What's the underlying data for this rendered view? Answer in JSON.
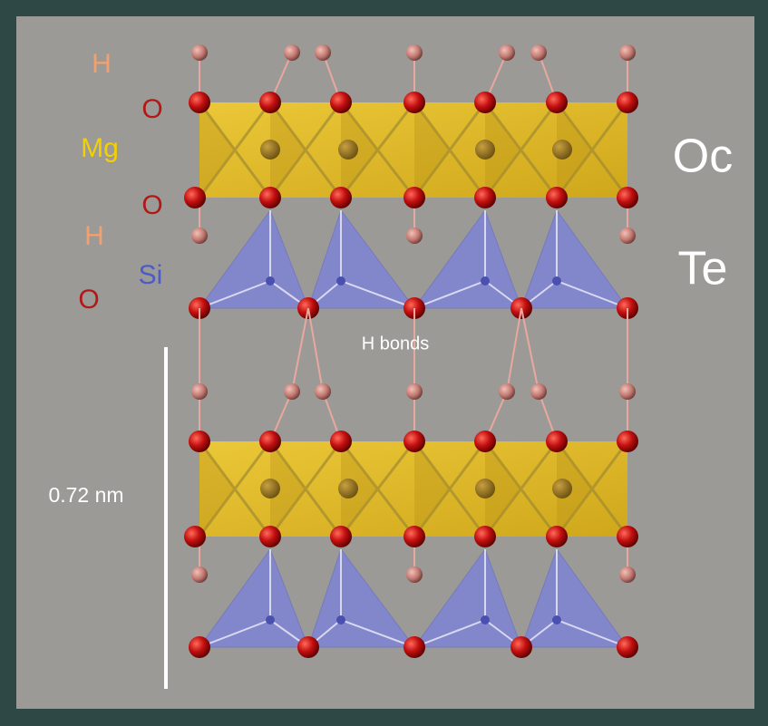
{
  "atom_labels": [
    "H",
    "O",
    "Mg",
    "O",
    "H",
    "Si",
    "O"
  ],
  "layer_labels": [
    "Oc",
    "Te"
  ],
  "annotations": {
    "h_bonds": "H bonds",
    "spacing": "0.72 nm"
  }
}
